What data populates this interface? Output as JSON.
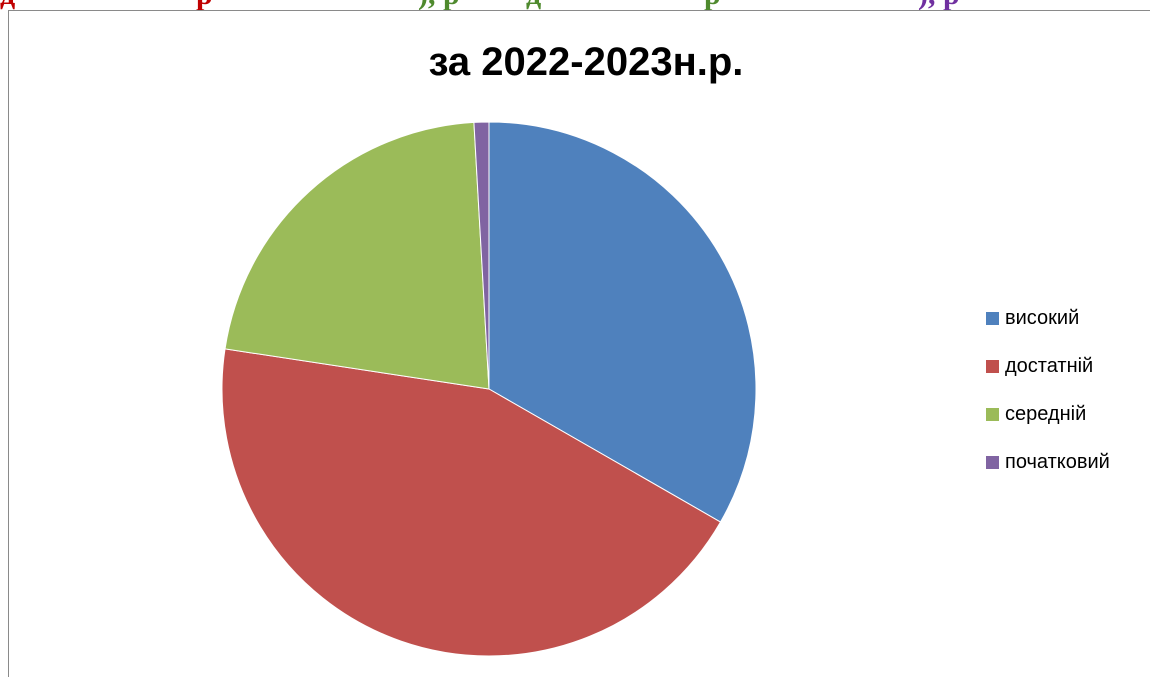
{
  "chart_data": {
    "type": "pie",
    "title": "за 2022-2023н.р.",
    "categories": [
      "високий",
      "достатній",
      "середній",
      "початковий"
    ],
    "values": [
      33.3,
      44.1,
      21.7,
      0.9
    ],
    "colors": [
      "#4F81BD",
      "#C0504D",
      "#9BBB59",
      "#8064A2"
    ],
    "legend_position": "right"
  },
  "top_text": [
    {
      "text": "д",
      "color": "#c00000"
    },
    {
      "text": "р",
      "color": "#c00000"
    },
    {
      "text": "), р",
      "color": "#4f8a2e"
    },
    {
      "text": "д",
      "color": "#4f8a2e"
    },
    {
      "text": "р",
      "color": "#4f8a2e"
    },
    {
      "text": "), р",
      "color": "#7030a0"
    }
  ]
}
